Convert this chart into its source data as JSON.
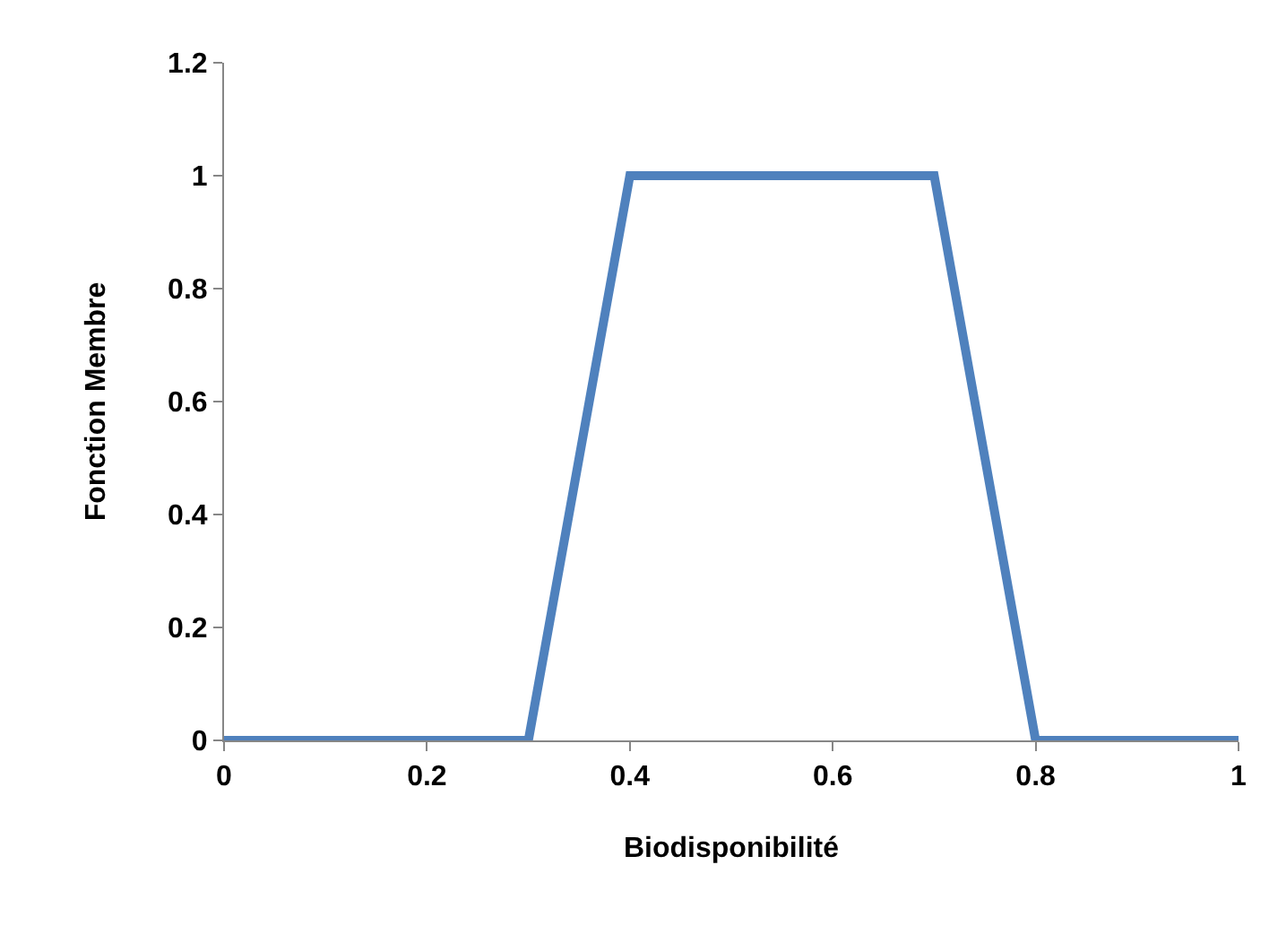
{
  "chart_data": {
    "type": "line",
    "xlabel": "Biodisponibilité",
    "ylabel": "Fonction Membre",
    "x": [
      0,
      0.3,
      0.4,
      0.7,
      0.8,
      1
    ],
    "series": [
      {
        "color": "#4f81bd",
        "values": [
          0,
          0,
          1,
          1,
          0,
          0
        ]
      }
    ],
    "xlim": [
      0,
      1
    ],
    "xticks": [
      0,
      0.2,
      0.4,
      0.6,
      0.8,
      1
    ],
    "ylim": [
      0,
      1.2
    ],
    "yticks": [
      0,
      0.2,
      0.4,
      0.6,
      0.8,
      1,
      1.2
    ],
    "legend": false,
    "marker": "none",
    "line_style": "solid"
  }
}
